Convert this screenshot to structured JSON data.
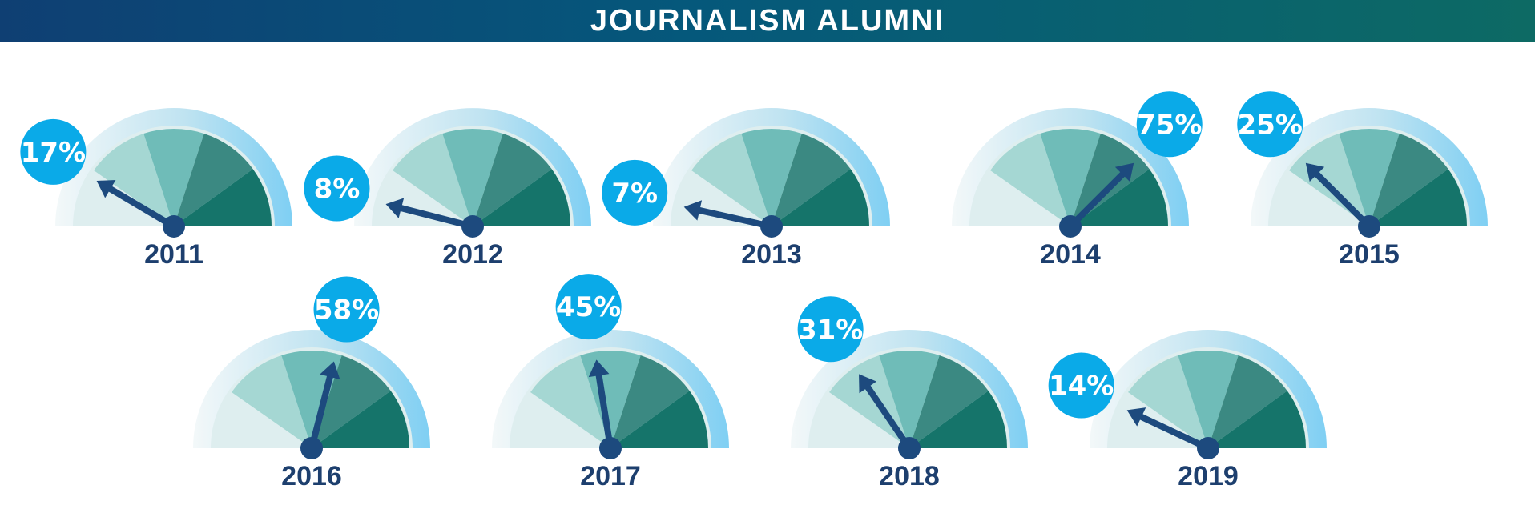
{
  "title": "JOURNALISM ALUMNI",
  "colors": {
    "banner_start": "#0f3f73",
    "banner_end": "#0d6a64",
    "outer_ring": "#7fcff3",
    "segments": [
      "#a5d7d3",
      "#6fbcb8",
      "#3b8982",
      "#15746a"
    ],
    "needle": "#1d4a7e",
    "bubble": "#0aaae8",
    "label_text": "#1d3f6e"
  },
  "chart_data": {
    "type": "gauge",
    "title": "JOURNALISM ALUMNI",
    "unit": "%",
    "range": [
      0,
      100
    ],
    "categories": [
      "2011",
      "2012",
      "2013",
      "2014",
      "2015",
      "2016",
      "2017",
      "2018",
      "2019"
    ],
    "values": [
      17,
      8,
      7,
      75,
      25,
      58,
      45,
      31,
      14
    ],
    "value_labels": [
      "17%",
      "8%",
      "7%",
      "75%",
      "25%",
      "58%",
      "45%",
      "31%",
      "14%"
    ]
  }
}
